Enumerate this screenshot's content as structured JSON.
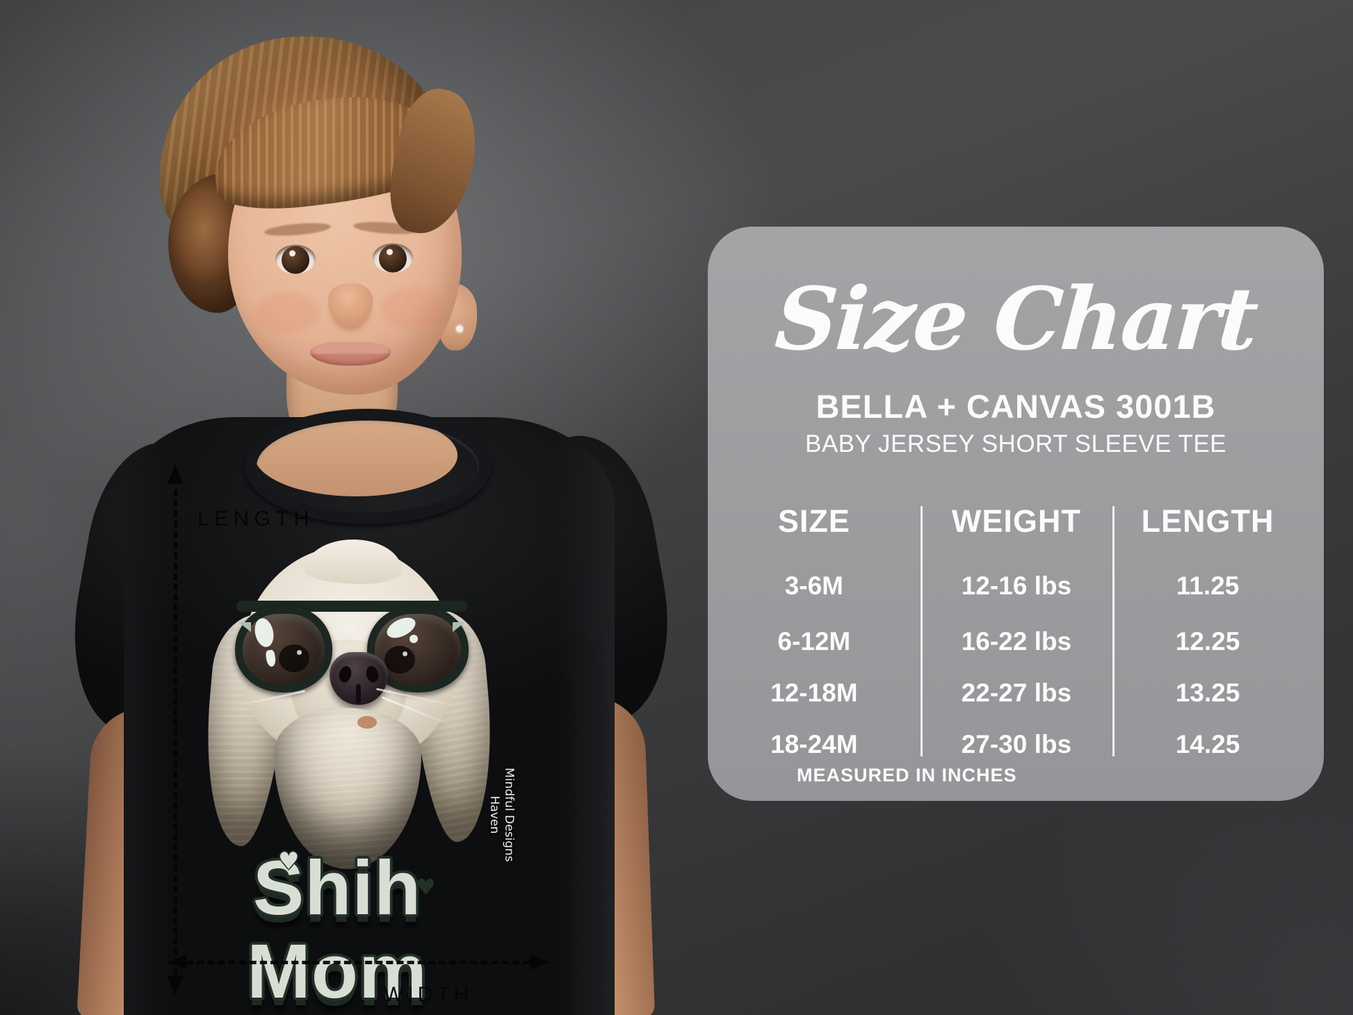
{
  "photo": {
    "shirt": {
      "title": "Shih Mom",
      "heart": "♥",
      "watermark_line1": "Mindful Designs",
      "watermark_line2": "Haven"
    },
    "measure": {
      "length_label": "LENGTH",
      "width_label": "WIDTH"
    }
  },
  "panel": {
    "title": "Size Chart",
    "subtitle1": "BELLA + CANVAS 3001B",
    "subtitle2": "BABY JERSEY SHORT SLEEVE TEE",
    "footnote": "MEASURED IN INCHES"
  },
  "chart_data": {
    "type": "table",
    "title": "Size Chart",
    "columns": [
      "SIZE",
      "WEIGHT",
      "LENGTH"
    ],
    "rows": [
      [
        "3-6M",
        "12-16 lbs",
        "11.25"
      ],
      [
        "6-12M",
        "16-22 lbs",
        "12.25"
      ],
      [
        "12-18M",
        "22-27 lbs",
        "13.25"
      ],
      [
        "18-24M",
        "27-30 lbs",
        "14.25"
      ]
    ],
    "note": "MEASURED IN INCHES",
    "units": "inches"
  },
  "colors": {
    "panel_bg": "#9c9c9f",
    "panel_text": "#fbfbfb",
    "backdrop": "#3f4042",
    "shirt_black": "#0d0e10",
    "sunglasses_green": "#1b2720",
    "print_letters": "#d9ded5",
    "print_outline": "#223028"
  }
}
